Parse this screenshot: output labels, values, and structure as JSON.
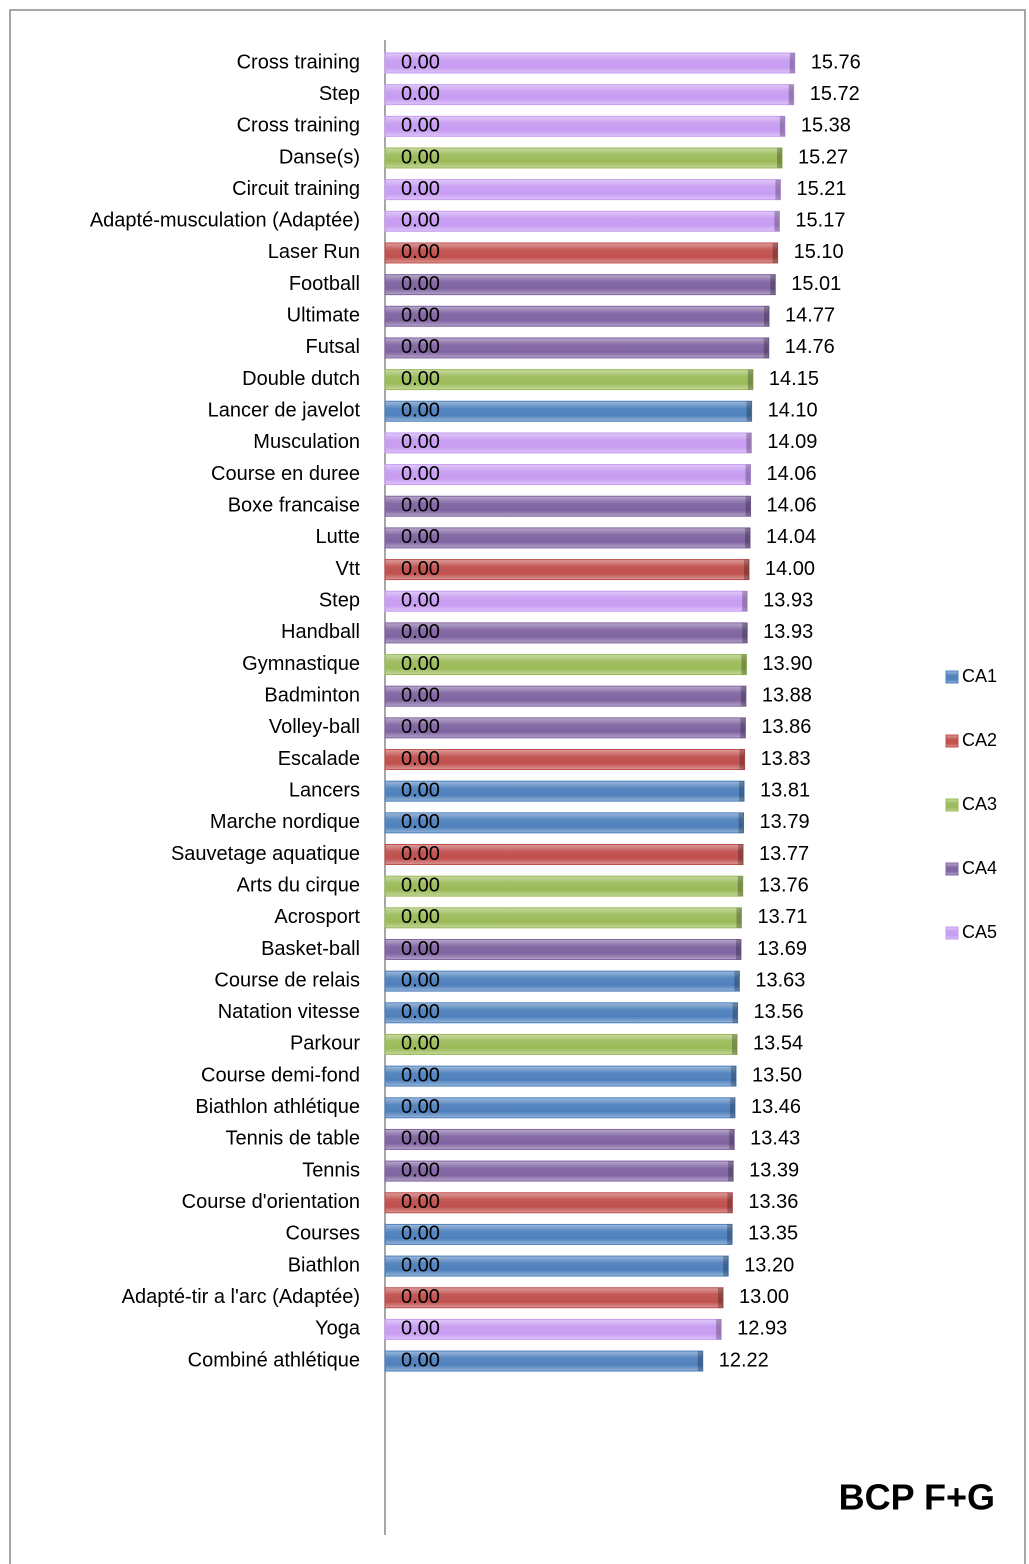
{
  "chart_data": {
    "type": "bar",
    "orientation": "horizontal",
    "title": "BCP F+G",
    "categories": [
      "Cross training",
      "Step",
      "Cross training",
      "Danse(s)",
      "Circuit training",
      "Adapté-musculation (Adaptée)",
      "Laser Run",
      "Football",
      "Ultimate",
      "Futsal",
      "Double dutch",
      "Lancer de javelot",
      "Musculation",
      "Course en duree",
      "Boxe francaise",
      "Lutte",
      "Vtt",
      "Step",
      "Handball",
      "Gymnastique",
      "Badminton",
      "Volley-ball",
      "Escalade",
      "Lancers",
      "Marche nordique",
      "Sauvetage aquatique",
      "Arts du cirque",
      "Acrosport",
      "Basket-ball",
      "Course de relais",
      "Natation vitesse",
      "Parkour",
      "Course demi-fond",
      "Biathlon athlétique",
      "Tennis de table",
      "Tennis",
      "Course d'orientation",
      "Courses",
      "Biathlon",
      "Adapté-tir a l'arc (Adaptée)",
      "Yoga",
      "Combiné athlétique"
    ],
    "xlim": [
      0,
      20
    ],
    "series": [
      {
        "name": "CA1",
        "color": "#4f81bd",
        "values": [
          null,
          null,
          null,
          null,
          null,
          null,
          null,
          null,
          null,
          null,
          null,
          14.1,
          null,
          null,
          null,
          null,
          null,
          null,
          null,
          null,
          null,
          null,
          null,
          13.81,
          13.79,
          null,
          null,
          null,
          null,
          13.63,
          13.56,
          null,
          13.5,
          13.46,
          null,
          null,
          null,
          13.35,
          13.2,
          null,
          null,
          12.22
        ],
        "value_labels": [
          null,
          null,
          null,
          null,
          null,
          null,
          null,
          null,
          null,
          null,
          null,
          "14.10",
          null,
          null,
          null,
          null,
          null,
          null,
          null,
          null,
          null,
          null,
          null,
          "13.81",
          "13.79",
          null,
          null,
          null,
          null,
          "13.63",
          "13.56",
          null,
          "13.50",
          "13.46",
          null,
          null,
          null,
          "13.35",
          "13.20",
          null,
          null,
          "12.22"
        ]
      },
      {
        "name": "CA2",
        "color": "#c0504d",
        "values": [
          null,
          null,
          null,
          null,
          null,
          null,
          15.1,
          null,
          null,
          null,
          null,
          null,
          null,
          null,
          null,
          null,
          14.0,
          null,
          null,
          null,
          null,
          null,
          13.83,
          null,
          null,
          13.77,
          null,
          null,
          null,
          null,
          null,
          null,
          null,
          null,
          null,
          null,
          13.36,
          null,
          null,
          13.0,
          null,
          null
        ],
        "value_labels": [
          null,
          null,
          null,
          null,
          null,
          null,
          "15.10",
          null,
          null,
          null,
          null,
          null,
          null,
          null,
          null,
          null,
          "14.00",
          null,
          null,
          null,
          null,
          null,
          "13.83",
          null,
          null,
          "13.77",
          null,
          null,
          null,
          null,
          null,
          null,
          null,
          null,
          null,
          null,
          "13.36",
          null,
          null,
          "13.00",
          null,
          null
        ]
      },
      {
        "name": "CA3",
        "color": "#9bbb59",
        "values": [
          null,
          null,
          null,
          15.27,
          null,
          null,
          null,
          null,
          null,
          null,
          14.15,
          null,
          null,
          null,
          null,
          null,
          null,
          null,
          null,
          13.9,
          null,
          null,
          null,
          null,
          null,
          null,
          13.76,
          13.71,
          null,
          null,
          null,
          13.54,
          null,
          null,
          null,
          null,
          null,
          null,
          null,
          null,
          null,
          null
        ],
        "value_labels": [
          null,
          null,
          null,
          "15.27",
          null,
          null,
          null,
          null,
          null,
          null,
          "14.15",
          null,
          null,
          null,
          null,
          null,
          null,
          null,
          null,
          "13.90",
          null,
          null,
          null,
          null,
          null,
          null,
          "13.76",
          "13.71",
          null,
          null,
          null,
          "13.54",
          null,
          null,
          null,
          null,
          null,
          null,
          null,
          null,
          null,
          null
        ]
      },
      {
        "name": "CA4",
        "color": "#8064a2",
        "values": [
          null,
          null,
          null,
          null,
          null,
          null,
          null,
          15.01,
          14.77,
          14.76,
          null,
          null,
          null,
          null,
          14.06,
          14.04,
          null,
          null,
          13.93,
          null,
          13.88,
          13.86,
          null,
          null,
          null,
          null,
          null,
          null,
          13.69,
          null,
          null,
          null,
          null,
          null,
          13.43,
          13.39,
          null,
          null,
          null,
          null,
          null,
          null
        ],
        "value_labels": [
          null,
          null,
          null,
          null,
          null,
          null,
          null,
          "15.01",
          "14.77",
          "14.76",
          null,
          null,
          null,
          null,
          "14.06",
          "14.04",
          null,
          null,
          "13.93",
          null,
          "13.88",
          "13.86",
          null,
          null,
          null,
          null,
          null,
          null,
          "13.69",
          null,
          null,
          null,
          null,
          null,
          "13.43",
          "13.39",
          null,
          null,
          null,
          null,
          null,
          null
        ]
      },
      {
        "name": "CA5",
        "color": "#c79cf2",
        "values": [
          15.76,
          15.72,
          15.38,
          null,
          15.21,
          15.17,
          null,
          null,
          null,
          null,
          null,
          null,
          14.09,
          14.06,
          null,
          null,
          null,
          13.93,
          null,
          null,
          null,
          null,
          null,
          null,
          null,
          null,
          null,
          null,
          null,
          null,
          null,
          null,
          null,
          null,
          null,
          null,
          null,
          null,
          null,
          null,
          12.93,
          null
        ],
        "value_labels": [
          "15.76",
          "15.72",
          "15.38",
          null,
          "15.21",
          "15.17",
          null,
          null,
          null,
          null,
          null,
          null,
          "14.09",
          "14.06",
          null,
          null,
          null,
          "13.93",
          null,
          null,
          null,
          null,
          null,
          null,
          null,
          null,
          null,
          null,
          null,
          null,
          null,
          null,
          null,
          null,
          null,
          null,
          null,
          null,
          null,
          null,
          "12.93",
          null
        ]
      }
    ],
    "inner_values": [
      0,
      0,
      0,
      0,
      0,
      0,
      0,
      0,
      0,
      0,
      0,
      0,
      0,
      0,
      0,
      0,
      0,
      0,
      0,
      0,
      0,
      0,
      0,
      0,
      0,
      0,
      0,
      0,
      0,
      0,
      0,
      0,
      0,
      0,
      0,
      0,
      0,
      0,
      0,
      0,
      0,
      0
    ],
    "inner_value_labels": [
      "0.00",
      "0.00",
      "0.00",
      "0.00",
      "0.00",
      "0.00",
      "0.00",
      "0.00",
      "0.00",
      "0.00",
      "0.00",
      "0.00",
      "0.00",
      "0.00",
      "0.00",
      "0.00",
      "0.00",
      "0.00",
      "0.00",
      "0.00",
      "0.00",
      "0.00",
      "0.00",
      "0.00",
      "0.00",
      "0.00",
      "0.00",
      "0.00",
      "0.00",
      "0.00",
      "0.00",
      "0.00",
      "0.00",
      "0.00",
      "0.00",
      "0.00",
      "0.00",
      "0.00",
      "0.00",
      "0.00",
      "0.00",
      "0.00"
    ],
    "legend": "right"
  }
}
